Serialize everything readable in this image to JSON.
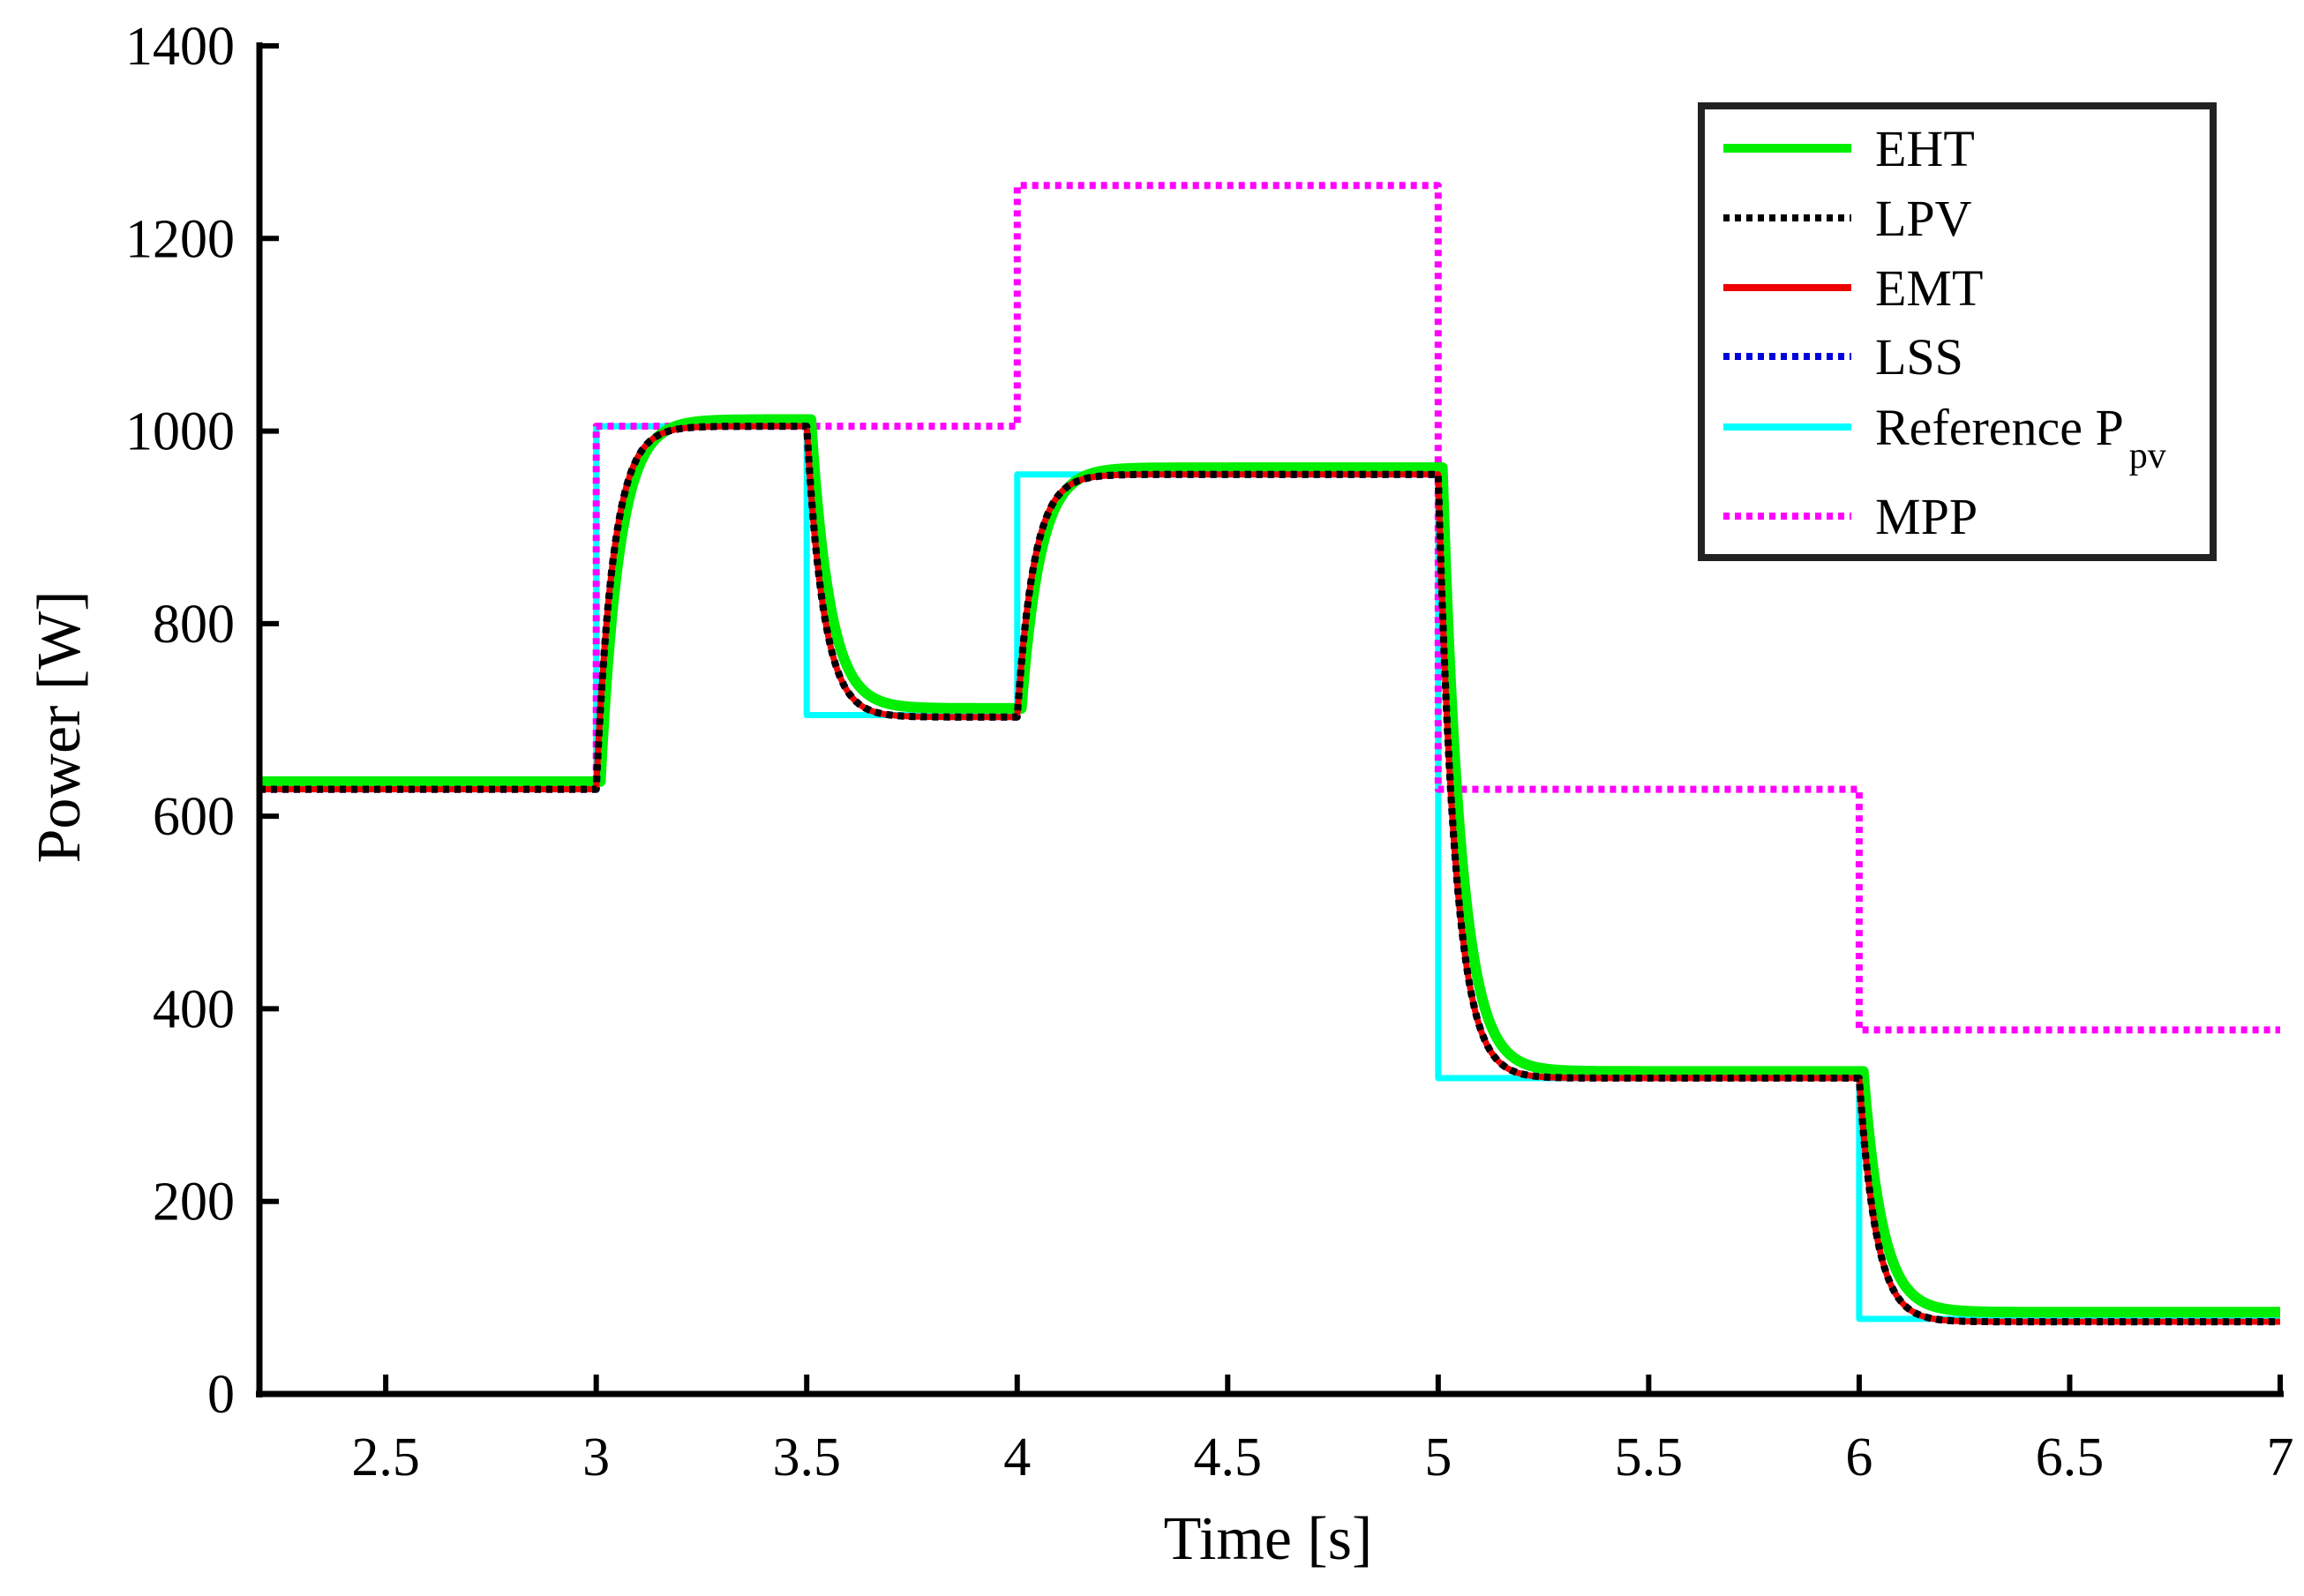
{
  "chart_data": {
    "type": "line",
    "xlabel": "Time [s]",
    "ylabel": "Power [W]",
    "xlim": [
      2.2,
      7
    ],
    "ylim": [
      0,
      1400
    ],
    "xticks": [
      2.5,
      3,
      3.5,
      4,
      4.5,
      5,
      5.5,
      6,
      6.5,
      7
    ],
    "xtick_labels": [
      "2.5",
      "3",
      "3.5",
      "4",
      "4.5",
      "5",
      "5.5",
      "6",
      "6.5",
      "7"
    ],
    "yticks": [
      0,
      200,
      400,
      600,
      800,
      1000,
      1200,
      1400
    ],
    "ytick_labels": [
      "0",
      "200",
      "400",
      "600",
      "800",
      "1000",
      "1200",
      "1400"
    ],
    "grid": false,
    "legend_position": "top-right",
    "legend": {
      "reference_label": "Reference P",
      "reference_subscript": "pv"
    },
    "steps": [
      {
        "t": 2.2,
        "ref": 630,
        "mpp": 628,
        "eht": 636,
        "emt": 628
      },
      {
        "t": 3.0,
        "ref": 1005,
        "mpp": 1005,
        "eht": 1012,
        "emt": 1005
      },
      {
        "t": 3.5,
        "ref": 705,
        "mpp": 1005,
        "eht": 712,
        "emt": 703
      },
      {
        "t": 4.0,
        "ref": 955,
        "mpp": 1255,
        "eht": 962,
        "emt": 955
      },
      {
        "t": 5.0,
        "ref": 328,
        "mpp": 628,
        "eht": 335,
        "emt": 328
      },
      {
        "t": 6.0,
        "ref": 78,
        "mpp": 378,
        "eht": 85,
        "emt": 75
      }
    ],
    "t_end": 7.0,
    "tau": 0.04,
    "series": [
      {
        "name": "EHT",
        "color": "#00ee00",
        "style": "solid",
        "kind": "response",
        "level_key": "eht",
        "delay": 0.01,
        "tau_scale": 1.12
      },
      {
        "name": "LPV",
        "color": "#000000",
        "style": "dotted",
        "kind": "response",
        "level_key": "emt",
        "delay": 0.0,
        "tau_scale": 1.0
      },
      {
        "name": "EMT",
        "color": "#ee0000",
        "style": "solid",
        "kind": "response",
        "level_key": "emt",
        "delay": 0.0,
        "tau_scale": 1.0
      },
      {
        "name": "LSS",
        "color": "#0000dd",
        "style": "dotted",
        "kind": "response",
        "level_key": "emt",
        "delay": 0.0,
        "tau_scale": 1.0
      },
      {
        "name": "Reference P",
        "color": "#00ffff",
        "style": "solid",
        "kind": "step",
        "level_key": "ref"
      },
      {
        "name": "MPP",
        "color": "#ff00ff",
        "style": "dotted",
        "kind": "step",
        "level_key": "mpp"
      }
    ]
  }
}
